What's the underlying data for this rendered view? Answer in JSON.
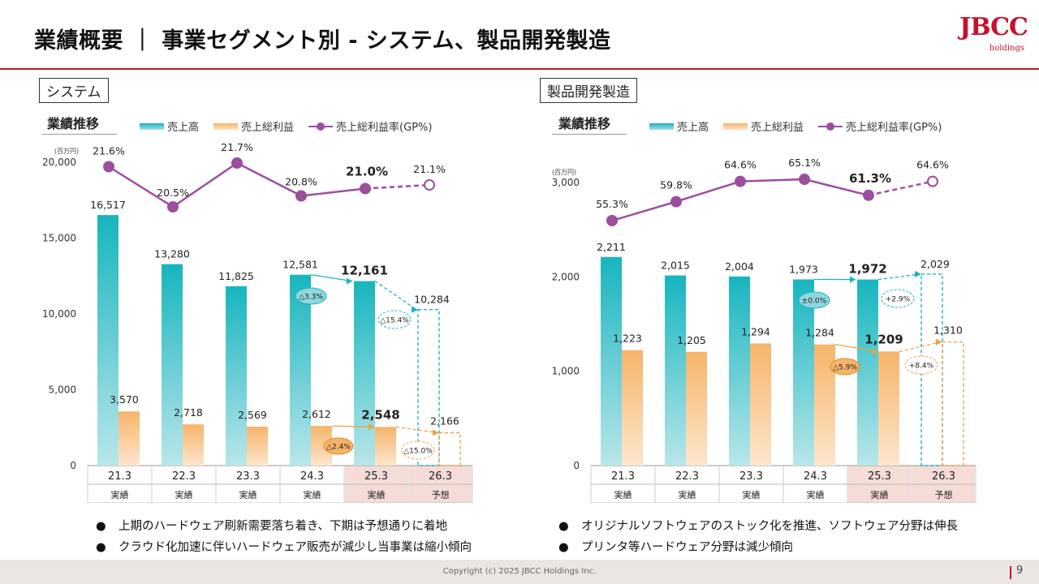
{
  "title": "業績概要 ｜ 事業セグメント別 - システム、製品開発製造",
  "logo": {
    "main": "JBCC",
    "sub": "holdings"
  },
  "legend": {
    "sales": "売上高",
    "gross_profit": "売上総利益",
    "gp_rate": "売上総利益率(GP%)"
  },
  "panels": [
    {
      "segment": "システム",
      "subtitle": "業績推移"
    },
    {
      "segment": "製品開発製造",
      "subtitle": "業績推移"
    }
  ],
  "colors": {
    "sales": "#17b5bf",
    "gross_profit": "#f6b46a",
    "gp_rate": "#9b4f9d",
    "highlight": "#f5dcd6",
    "accent": "#c8102e"
  },
  "chart_data": [
    {
      "type": "bar",
      "unit": "(百万円)",
      "ylim": [
        0,
        20000
      ],
      "y_ticks": [
        "0",
        "5,000",
        "10,000",
        "15,000",
        "20,000"
      ],
      "categories": [
        "21.3",
        "22.3",
        "23.3",
        "24.3",
        "25.3",
        "26.3"
      ],
      "category_types": [
        "実績",
        "実績",
        "実績",
        "実績",
        "実績",
        "予想"
      ],
      "highlight_categories": [
        "25.3",
        "26.3"
      ],
      "series": [
        {
          "name": "売上高",
          "values": [
            16517,
            13280,
            11825,
            12581,
            12161,
            10284
          ],
          "labels": [
            "16,517",
            "13,280",
            "11,825",
            "12,581",
            "12,161",
            "10,284"
          ]
        },
        {
          "name": "売上総利益",
          "values": [
            3570,
            2718,
            2569,
            2612,
            2548,
            2166
          ],
          "labels": [
            "3,570",
            "2,718",
            "2,569",
            "2,612",
            "2,548",
            "2,166"
          ]
        },
        {
          "name": "売上総利益率(GP%)",
          "values": [
            21.6,
            20.5,
            21.7,
            20.8,
            21.0,
            21.1
          ],
          "labels": [
            "21.6%",
            "20.5%",
            "21.7%",
            "20.8%",
            "21.0%",
            "21.1%"
          ]
        }
      ],
      "annotations": {
        "sales_yoy": "△3.3%",
        "sales_forecast": "△15.4%",
        "gp_yoy": "△2.4%",
        "gp_forecast": "△15.0%"
      }
    },
    {
      "type": "bar",
      "unit": "(百万円)",
      "ylim": [
        0,
        3000
      ],
      "y_ticks": [
        "0",
        "1,000",
        "2,000",
        "3,000"
      ],
      "categories": [
        "21.3",
        "22.3",
        "23.3",
        "24.3",
        "25.3",
        "26.3"
      ],
      "category_types": [
        "実績",
        "実績",
        "実績",
        "実績",
        "実績",
        "予想"
      ],
      "highlight_categories": [
        "25.3",
        "26.3"
      ],
      "series": [
        {
          "name": "売上高",
          "values": [
            2211,
            2015,
            2004,
            1973,
            1972,
            2029
          ],
          "labels": [
            "2,211",
            "2,015",
            "2,004",
            "1,973",
            "1,972",
            "2,029"
          ]
        },
        {
          "name": "売上総利益",
          "values": [
            1223,
            1205,
            1294,
            1284,
            1209,
            1310
          ],
          "labels": [
            "1,223",
            "1,205",
            "1,294",
            "1,284",
            "1,209",
            "1,310"
          ]
        },
        {
          "name": "売上総利益率(GP%)",
          "values": [
            55.3,
            59.8,
            64.6,
            65.1,
            61.3,
            64.6
          ],
          "labels": [
            "55.3%",
            "59.8%",
            "64.6%",
            "65.1%",
            "61.3%",
            "64.6%"
          ]
        }
      ],
      "annotations": {
        "sales_yoy": "±0.0%",
        "sales_forecast": "+2.9%",
        "gp_yoy": "△5.9%",
        "gp_forecast": "+8.4%"
      }
    }
  ],
  "bullets": {
    "left": [
      "上期のハードウェア刷新需要落ち着き、下期は予想通りに着地",
      "クラウド化加速に伴いハードウェア販売が減少し当事業は縮小傾向"
    ],
    "right": [
      "オリジナルソフトウェアのストック化を推進、ソフトウェア分野は伸長",
      "プリンタ等ハードウェア分野は減少傾向"
    ],
    "marker": "●"
  },
  "footer": {
    "copyright": "Copyright (c) 2025 JBCC Holdings Inc.",
    "page": "9"
  }
}
